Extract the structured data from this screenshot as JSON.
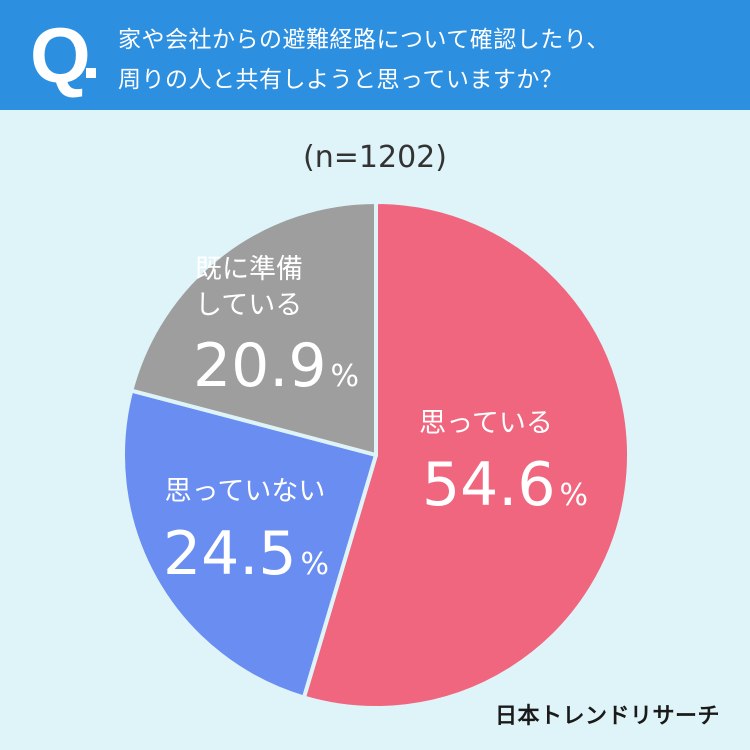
{
  "question": {
    "mark": "Q",
    "line1": "家や会社からの避難経路について確認したり、",
    "line2": "周りの人と共有しようと思っていますか？"
  },
  "sample_size": "(n=1202)",
  "brand": "日本トレンドリサーチ",
  "colors": {
    "header": "#2d8fe0",
    "background": "#dff4f8",
    "slice_yes": "#f0667e",
    "slice_no": "#6a8df2",
    "slice_prepared": "#9e9e9e",
    "separator": "#dff4f8"
  },
  "chart_data": {
    "type": "pie",
    "start": "12 o'clock",
    "direction": "clockwise",
    "categories": [
      "思っている",
      "思っていない",
      "既に準備している"
    ],
    "values": [
      54.6,
      24.5,
      20.9
    ],
    "unit": "%",
    "labels": [
      {
        "text": [
          "思っている"
        ],
        "value": "54.6",
        "unit": "%"
      },
      {
        "text": [
          "思っていない"
        ],
        "value": "24.5",
        "unit": "%"
      },
      {
        "text": [
          "既に準備",
          "している"
        ],
        "value": "20.9",
        "unit": "%"
      }
    ]
  }
}
